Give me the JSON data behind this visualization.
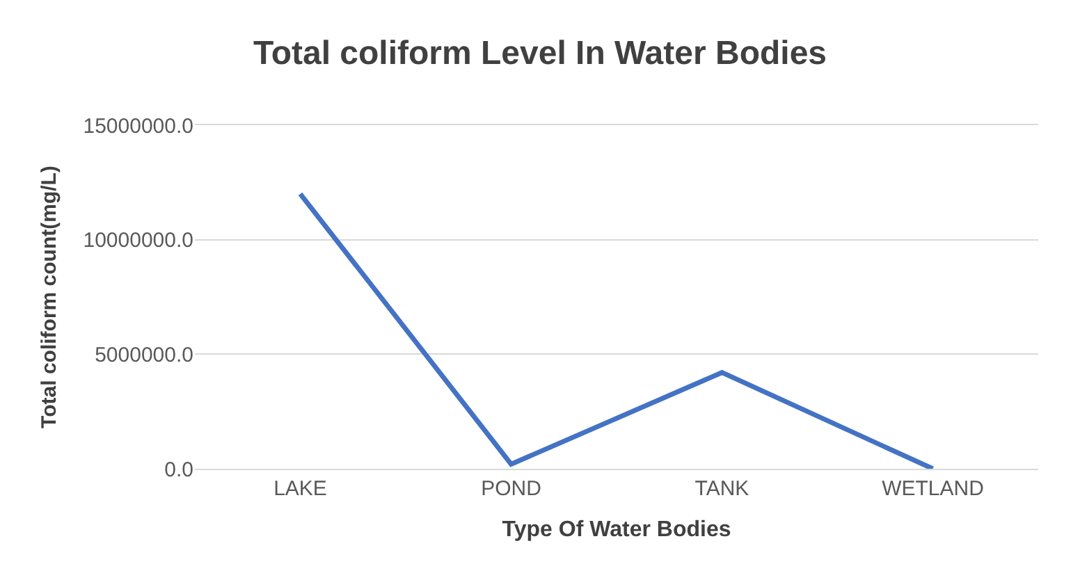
{
  "chart_data": {
    "type": "line",
    "title": "Total coliform Level In Water Bodies",
    "xlabel": "Type Of Water Bodies",
    "ylabel": "Total coliform count(mg/L)",
    "categories": [
      "LAKE",
      "POND",
      "TANK",
      "WETLAND"
    ],
    "series": [
      {
        "color": "#4472c4",
        "values": [
          12000000,
          200000,
          4200000,
          0
        ]
      }
    ],
    "ylim": [
      0,
      15000000
    ],
    "yticks": [
      {
        "value": 0,
        "label": "0.0"
      },
      {
        "value": 5000000,
        "label": "5000000.0"
      },
      {
        "value": 10000000,
        "label": "10000000.0"
      },
      {
        "value": 15000000,
        "label": "15000000.0"
      }
    ],
    "grid": "y",
    "marker": "none",
    "line_style": "solid"
  }
}
